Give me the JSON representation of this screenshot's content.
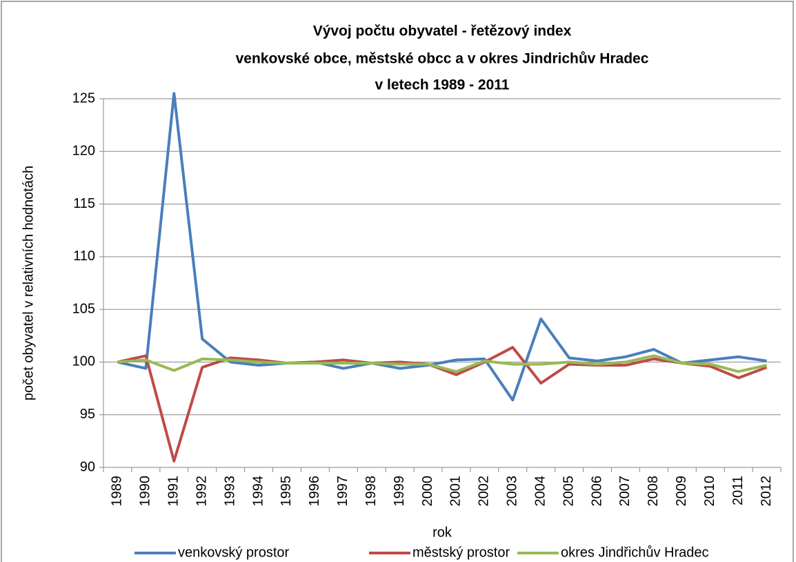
{
  "chart_data": {
    "type": "line",
    "title": [
      "Vývoj počtu obyvatel - řetězový index",
      "venkovské obce, městské obcc a v okres Jindrichův Hradec",
      "v letech 1989 - 2011"
    ],
    "x_label": "rok",
    "y_label": "počet obyvatel v relativních hodnotách",
    "categories": [
      "1989",
      "1990",
      "1991",
      "1992",
      "1993",
      "1994",
      "1995",
      "1996",
      "1997",
      "1998",
      "1999",
      "2000",
      "2001",
      "2002",
      "2003",
      "2004",
      "2005",
      "2006",
      "2007",
      "2008",
      "2009",
      "2010",
      "2011",
      "2012"
    ],
    "series": [
      {
        "name": "venkovský prostor",
        "color": "#4a7ebb",
        "values": [
          100,
          99.4,
          125.5,
          102.2,
          100,
          99.7,
          99.9,
          100,
          99.4,
          99.9,
          99.4,
          99.7,
          100.2,
          100.3,
          96.4,
          104.1,
          100.4,
          100.1,
          100.5,
          101.2,
          99.9,
          100.2,
          100.5,
          100.1
        ]
      },
      {
        "name": "městský prostor",
        "color": "#be4b48",
        "values": [
          100,
          100.6,
          90.6,
          99.5,
          100.4,
          100.2,
          99.9,
          100,
          100.2,
          99.9,
          100,
          99.8,
          98.8,
          100,
          101.4,
          98.0,
          99.8,
          99.7,
          99.7,
          100.3,
          99.9,
          99.6,
          98.5,
          99.5
        ]
      },
      {
        "name": "okres Jindřichův Hradec",
        "color": "#98b954",
        "values": [
          100,
          100.2,
          99.2,
          100.3,
          100.2,
          100,
          99.9,
          99.9,
          99.9,
          99.9,
          99.8,
          99.8,
          99.1,
          100.1,
          99.8,
          99.8,
          100,
          99.8,
          100,
          100.6,
          99.9,
          99.8,
          99.1,
          99.7
        ]
      }
    ],
    "ylim": [
      90,
      125
    ],
    "yticks": [
      90,
      95,
      100,
      105,
      110,
      115,
      120,
      125
    ],
    "grid": true,
    "legend": "bottom"
  }
}
